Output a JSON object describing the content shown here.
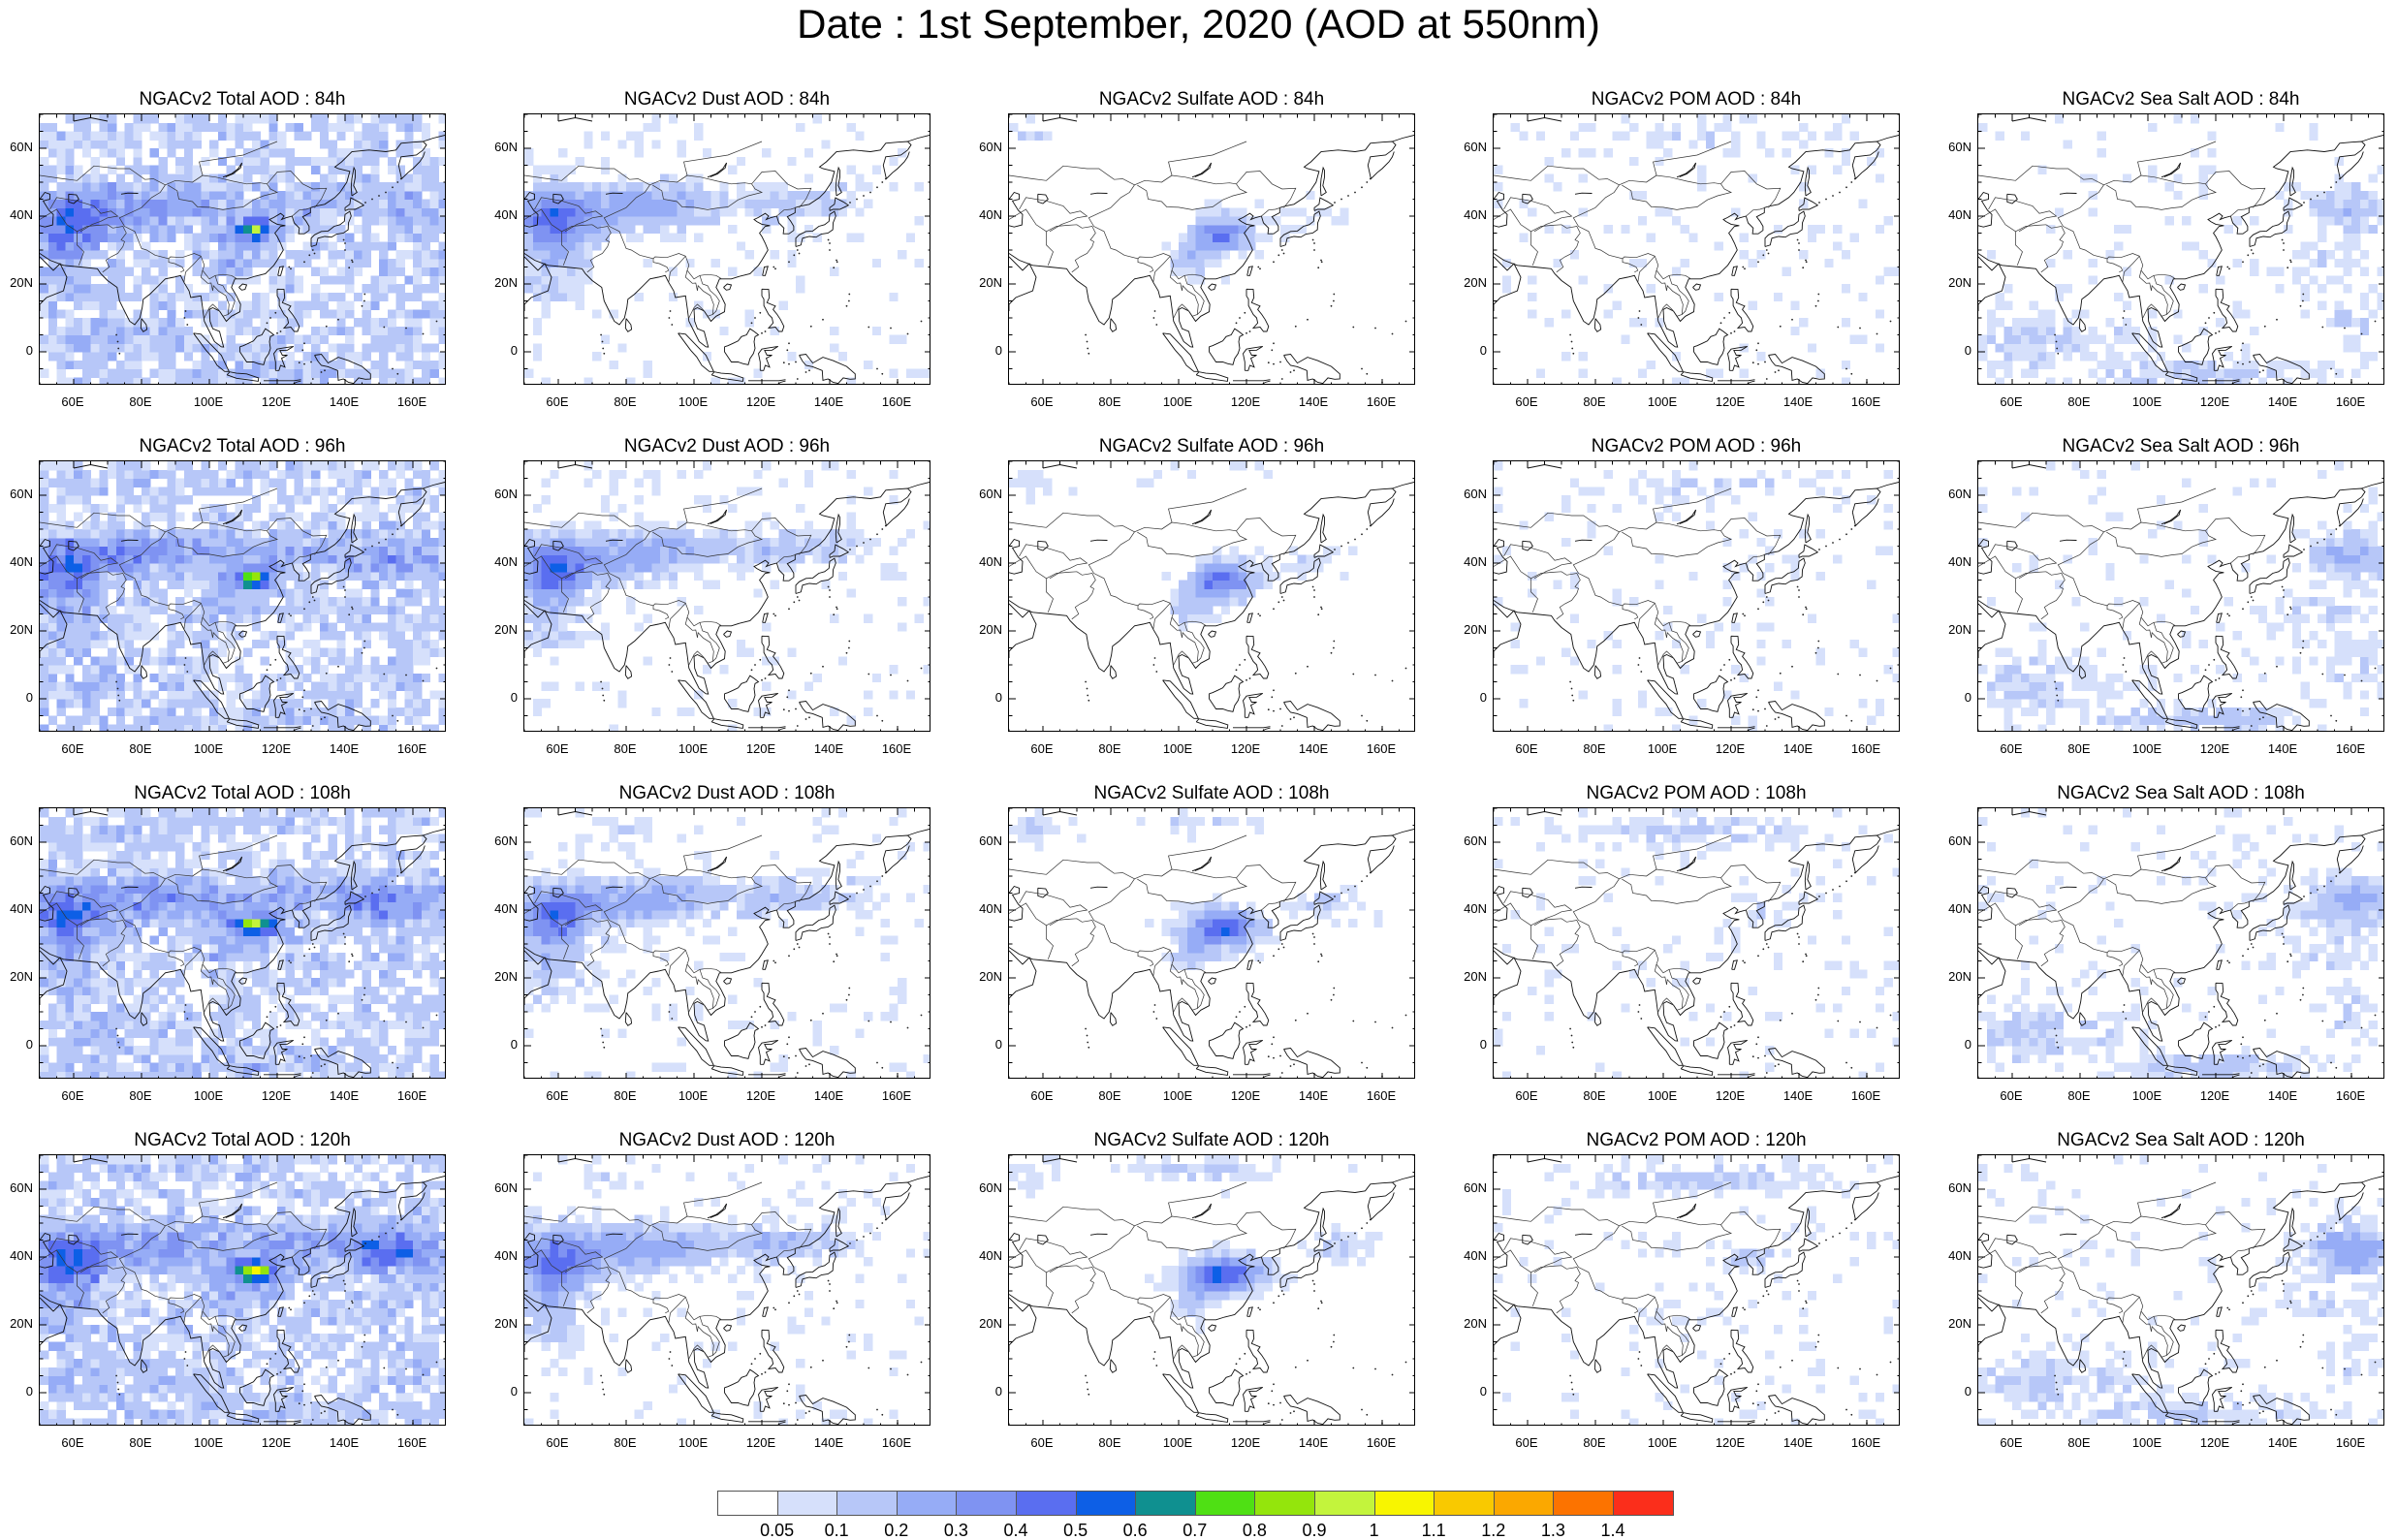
{
  "title": "Date : 1st September, 2020 (AOD at 550nm)",
  "lat_ticks": [
    "60N",
    "40N",
    "20N",
    "0"
  ],
  "lon_ticks": [
    "60E",
    "80E",
    "100E",
    "120E",
    "140E",
    "160E"
  ],
  "rows": [
    {
      "forecast_hour": "84h",
      "titles": [
        "NGACv2 Total AOD : 84h",
        "NGACv2 Dust AOD : 84h",
        "NGACv2 Sulfate AOD : 84h",
        "NGACv2 POM AOD : 84h",
        "NGACv2 Sea Salt AOD : 84h"
      ]
    },
    {
      "forecast_hour": "96h",
      "titles": [
        "NGACv2 Total AOD : 96h",
        "NGACv2 Dust AOD : 96h",
        "NGACv2 Sulfate AOD : 96h",
        "NGACv2 POM AOD : 96h",
        "NGACv2 Sea Salt AOD : 96h"
      ]
    },
    {
      "forecast_hour": "108h",
      "titles": [
        "NGACv2 Total AOD : 108h",
        "NGACv2 Dust AOD : 108h",
        "NGACv2 Sulfate AOD : 108h",
        "NGACv2 POM AOD : 108h",
        "NGACv2 Sea Salt AOD : 108h"
      ]
    },
    {
      "forecast_hour": "120h",
      "titles": [
        "NGACv2 Total AOD : 120h",
        "NGACv2 Dust AOD : 120h",
        "NGACv2 Sulfate AOD : 120h",
        "NGACv2 POM AOD : 120h",
        "NGACv2 Sea Salt  AOD : 120h"
      ]
    }
  ],
  "colorbar": {
    "colors": [
      "#ffffff",
      "#d6e0fb",
      "#b7c7f8",
      "#96acf6",
      "#7f93f2",
      "#5a6ef0",
      "#0d5fe6",
      "#0f9090",
      "#4fe014",
      "#94e50c",
      "#c3f43c",
      "#f8f500",
      "#f9c900",
      "#fba800",
      "#fc7300",
      "#fb2e1b"
    ],
    "labels": [
      "0.05",
      "0.1",
      "0.2",
      "0.3",
      "0.4",
      "0.5",
      "0.6",
      "0.7",
      "0.8",
      "0.9",
      "1",
      "1.1",
      "1.2",
      "1.3",
      "1.4"
    ]
  }
}
